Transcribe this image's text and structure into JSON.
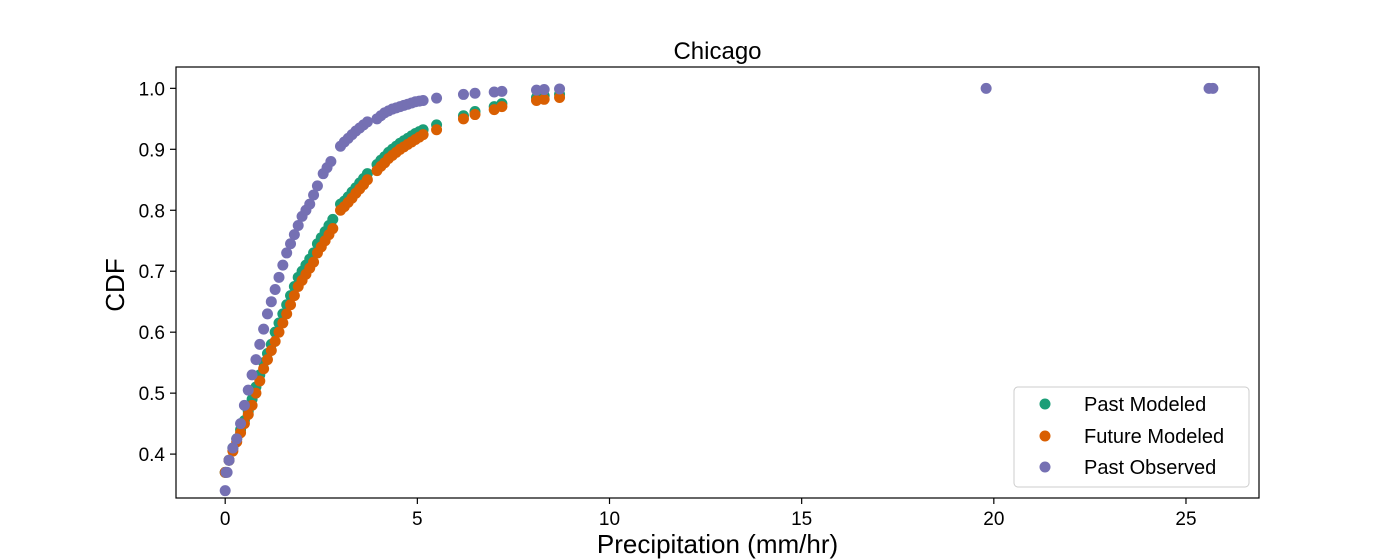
{
  "chart_data": {
    "type": "scatter",
    "title": "Chicago",
    "xlabel": "Precipitation (mm/hr)",
    "ylabel": "CDF",
    "xlim": [
      -1.28,
      26.9
    ],
    "ylim": [
      0.328,
      1.035
    ],
    "xticks": [
      0,
      5,
      10,
      15,
      20,
      25
    ],
    "yticks": [
      0.4,
      0.5,
      0.6,
      0.7,
      0.8,
      0.9,
      1.0
    ],
    "xtick_labels": [
      "0",
      "5",
      "10",
      "15",
      "20",
      "25"
    ],
    "ytick_labels": [
      "0.4",
      "0.5",
      "0.6",
      "0.7",
      "0.8",
      "0.9",
      "1.0"
    ],
    "grid": false,
    "legend_position": "lower-right",
    "series": [
      {
        "name": "Past Modeled",
        "color": "#1b9e77",
        "x": [
          0.0,
          0.1,
          0.2,
          0.3,
          0.4,
          0.5,
          0.6,
          0.7,
          0.8,
          0.9,
          1.0,
          1.1,
          1.2,
          1.3,
          1.4,
          1.5,
          1.6,
          1.7,
          1.8,
          1.9,
          2.0,
          2.1,
          2.2,
          2.3,
          2.4,
          2.5,
          2.6,
          2.7,
          2.8,
          3.0,
          3.1,
          3.2,
          3.3,
          3.4,
          3.5,
          3.6,
          3.7,
          3.95,
          4.05,
          4.15,
          4.25,
          4.35,
          4.45,
          4.55,
          4.65,
          4.75,
          4.85,
          4.95,
          5.05,
          5.15,
          5.5,
          6.2,
          6.5,
          7.0,
          7.2,
          8.1,
          8.3,
          8.7
        ],
        "y": [
          0.37,
          0.39,
          0.41,
          0.425,
          0.44,
          0.455,
          0.47,
          0.49,
          0.51,
          0.53,
          0.55,
          0.565,
          0.58,
          0.6,
          0.615,
          0.63,
          0.645,
          0.66,
          0.675,
          0.69,
          0.7,
          0.71,
          0.72,
          0.73,
          0.745,
          0.755,
          0.765,
          0.775,
          0.785,
          0.81,
          0.815,
          0.822,
          0.83,
          0.837,
          0.845,
          0.852,
          0.86,
          0.875,
          0.882,
          0.888,
          0.895,
          0.9,
          0.905,
          0.91,
          0.914,
          0.918,
          0.922,
          0.926,
          0.929,
          0.932,
          0.94,
          0.955,
          0.962,
          0.97,
          0.975,
          0.985,
          0.988,
          0.99
        ]
      },
      {
        "name": "Future Modeled",
        "color": "#d95f02",
        "x": [
          0.0,
          0.1,
          0.2,
          0.3,
          0.4,
          0.5,
          0.6,
          0.7,
          0.8,
          0.9,
          1.0,
          1.1,
          1.2,
          1.3,
          1.4,
          1.5,
          1.6,
          1.7,
          1.8,
          1.9,
          2.0,
          2.1,
          2.2,
          2.3,
          2.4,
          2.5,
          2.6,
          2.7,
          2.8,
          3.0,
          3.1,
          3.2,
          3.3,
          3.4,
          3.5,
          3.6,
          3.7,
          3.95,
          4.05,
          4.15,
          4.25,
          4.35,
          4.45,
          4.55,
          4.65,
          4.75,
          4.85,
          4.95,
          5.05,
          5.15,
          5.5,
          6.2,
          6.5,
          7.0,
          7.2,
          8.1,
          8.3,
          8.7
        ],
        "y": [
          0.37,
          0.39,
          0.405,
          0.42,
          0.435,
          0.45,
          0.465,
          0.48,
          0.5,
          0.52,
          0.54,
          0.555,
          0.57,
          0.585,
          0.6,
          0.615,
          0.63,
          0.645,
          0.66,
          0.675,
          0.685,
          0.695,
          0.705,
          0.715,
          0.73,
          0.74,
          0.75,
          0.76,
          0.77,
          0.8,
          0.806,
          0.813,
          0.82,
          0.828,
          0.835,
          0.842,
          0.85,
          0.865,
          0.872,
          0.878,
          0.885,
          0.89,
          0.895,
          0.9,
          0.904,
          0.908,
          0.912,
          0.916,
          0.92,
          0.924,
          0.932,
          0.95,
          0.957,
          0.965,
          0.97,
          0.98,
          0.982,
          0.985
        ]
      },
      {
        "name": "Past Observed",
        "color": "#7570b3",
        "x": [
          0.0,
          0.02,
          0.05,
          0.1,
          0.2,
          0.3,
          0.4,
          0.5,
          0.6,
          0.7,
          0.8,
          0.9,
          1.0,
          1.1,
          1.2,
          1.3,
          1.4,
          1.5,
          1.6,
          1.7,
          1.8,
          1.9,
          2.0,
          2.1,
          2.2,
          2.3,
          2.4,
          2.55,
          2.65,
          2.75,
          3.0,
          3.1,
          3.2,
          3.3,
          3.4,
          3.5,
          3.6,
          3.7,
          3.95,
          4.05,
          4.15,
          4.25,
          4.35,
          4.45,
          4.55,
          4.65,
          4.75,
          4.85,
          4.95,
          5.05,
          5.15,
          5.5,
          6.2,
          6.5,
          7.0,
          7.2,
          8.1,
          8.3,
          8.7,
          19.8,
          25.6,
          25.7
        ],
        "y": [
          0.34,
          0.37,
          0.37,
          0.39,
          0.41,
          0.425,
          0.45,
          0.48,
          0.505,
          0.53,
          0.555,
          0.58,
          0.605,
          0.63,
          0.65,
          0.67,
          0.69,
          0.71,
          0.73,
          0.745,
          0.76,
          0.775,
          0.79,
          0.8,
          0.81,
          0.825,
          0.84,
          0.86,
          0.87,
          0.88,
          0.905,
          0.912,
          0.918,
          0.924,
          0.93,
          0.935,
          0.94,
          0.945,
          0.95,
          0.955,
          0.96,
          0.963,
          0.966,
          0.968,
          0.97,
          0.972,
          0.974,
          0.976,
          0.978,
          0.979,
          0.98,
          0.984,
          0.99,
          0.992,
          0.994,
          0.995,
          0.997,
          0.998,
          0.999,
          1.0,
          1.0,
          1.0
        ]
      }
    ]
  }
}
